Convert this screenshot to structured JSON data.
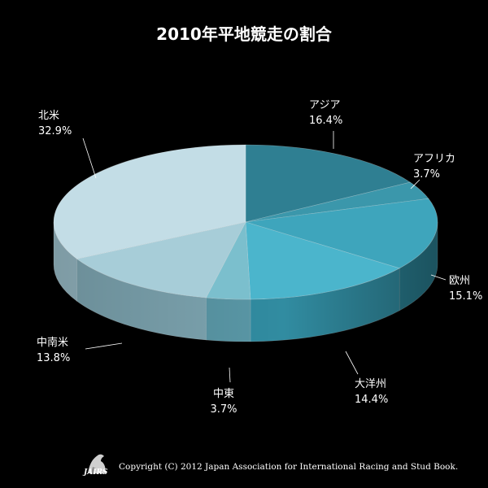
{
  "chart_data": {
    "type": "pie",
    "title": "2010年平地競走の割合",
    "slices": [
      {
        "label": "アジア",
        "value": 16.4,
        "display": "16.4%",
        "color": "#2f7f92",
        "side": "#1f5d6c"
      },
      {
        "label": "アフリカ",
        "value": 3.7,
        "display": "3.7%",
        "color": "#3b97ab",
        "side": "#276f80"
      },
      {
        "label": "欧州",
        "value": 15.1,
        "display": "15.1%",
        "color": "#3ea5bc",
        "side": "#2a7f92"
      },
      {
        "label": "大洋州",
        "value": 14.4,
        "display": "14.4%",
        "color": "#4bb5cc",
        "side": "#318ca1"
      },
      {
        "label": "中東",
        "value": 3.7,
        "display": "3.7%",
        "color": "#7bbfcd",
        "side": "#5a98a7"
      },
      {
        "label": "中南米",
        "value": 13.8,
        "display": "13.8%",
        "color": "#a7cdd8",
        "side": "#7ea6b2"
      },
      {
        "label": "北米",
        "value": 32.9,
        "display": "32.9%",
        "color": "#c3dde6",
        "side": "#94b6c1"
      }
    ]
  },
  "footer": {
    "copyright": "Copyright (C) 2012 Japan Association for International Racing and Stud Book.",
    "logo_text": "JAIRS"
  }
}
